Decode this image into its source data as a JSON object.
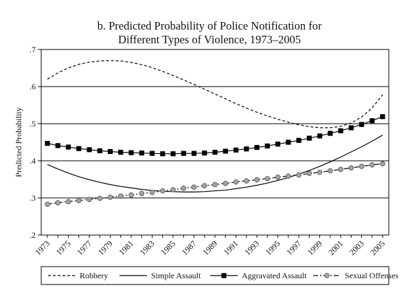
{
  "chart_data": {
    "type": "line",
    "title_lines": [
      "b. Predicted Probability of Police Notification for",
      "Different Types of Violence, 1973–2005"
    ],
    "ylabel": "Predicted Probability",
    "xlabel": "",
    "ylim": [
      0.2,
      0.7
    ],
    "yticks": [
      0.2,
      0.3,
      0.4,
      0.5,
      0.6,
      0.7
    ],
    "ytick_labels": [
      ".2",
      ".3",
      ".4",
      ".5",
      ".6",
      ".7"
    ],
    "xlim": [
      1973,
      2005
    ],
    "xticks": [
      1973,
      1975,
      1977,
      1979,
      1981,
      1983,
      1985,
      1987,
      1989,
      1991,
      1993,
      1995,
      1997,
      1999,
      2001,
      2003,
      2005
    ],
    "xtick_labels": [
      "1973",
      "1975",
      "1977",
      "1979",
      "1981",
      "1983",
      "1985",
      "1987",
      "1989",
      "1991",
      "1993",
      "1995",
      "1997",
      "1999",
      "2001",
      "2003",
      "2005"
    ],
    "grid": "horizontal",
    "legend_position": "bottom",
    "x": [
      1973,
      1974,
      1975,
      1976,
      1977,
      1978,
      1979,
      1980,
      1981,
      1982,
      1983,
      1984,
      1985,
      1986,
      1987,
      1988,
      1989,
      1990,
      1991,
      1992,
      1993,
      1994,
      1995,
      1996,
      1997,
      1998,
      1999,
      2000,
      2001,
      2002,
      2003,
      2004,
      2005
    ],
    "series": [
      {
        "name": "Robbery",
        "style": "dashed",
        "marker": "none",
        "values": [
          0.62,
          0.637,
          0.65,
          0.66,
          0.666,
          0.669,
          0.67,
          0.669,
          0.665,
          0.659,
          0.651,
          0.641,
          0.63,
          0.618,
          0.606,
          0.593,
          0.58,
          0.567,
          0.554,
          0.542,
          0.531,
          0.521,
          0.512,
          0.504,
          0.497,
          0.492,
          0.489,
          0.489,
          0.493,
          0.502,
          0.518,
          0.543,
          0.578
        ]
      },
      {
        "name": "Simple Assault",
        "style": "solid",
        "marker": "none",
        "values": [
          0.39,
          0.378,
          0.367,
          0.357,
          0.349,
          0.342,
          0.336,
          0.331,
          0.327,
          0.323,
          0.32,
          0.318,
          0.317,
          0.316,
          0.316,
          0.317,
          0.319,
          0.321,
          0.325,
          0.329,
          0.334,
          0.34,
          0.347,
          0.355,
          0.364,
          0.374,
          0.385,
          0.397,
          0.41,
          0.424,
          0.438,
          0.453,
          0.469
        ]
      },
      {
        "name": "Aggravated Assault",
        "style": "solid",
        "marker": "square",
        "values": [
          0.447,
          0.441,
          0.437,
          0.433,
          0.43,
          0.427,
          0.425,
          0.423,
          0.422,
          0.421,
          0.42,
          0.419,
          0.419,
          0.42,
          0.42,
          0.421,
          0.423,
          0.426,
          0.429,
          0.432,
          0.436,
          0.44,
          0.445,
          0.45,
          0.455,
          0.461,
          0.467,
          0.474,
          0.481,
          0.489,
          0.498,
          0.508,
          0.519
        ]
      },
      {
        "name": "Sexual Offenses",
        "style": "dashdot",
        "marker": "circle",
        "values": [
          0.283,
          0.287,
          0.29,
          0.293,
          0.296,
          0.299,
          0.302,
          0.305,
          0.308,
          0.312,
          0.315,
          0.319,
          0.322,
          0.326,
          0.329,
          0.333,
          0.336,
          0.339,
          0.343,
          0.346,
          0.349,
          0.352,
          0.356,
          0.359,
          0.362,
          0.366,
          0.369,
          0.373,
          0.377,
          0.381,
          0.385,
          0.389,
          0.392
        ]
      }
    ]
  }
}
